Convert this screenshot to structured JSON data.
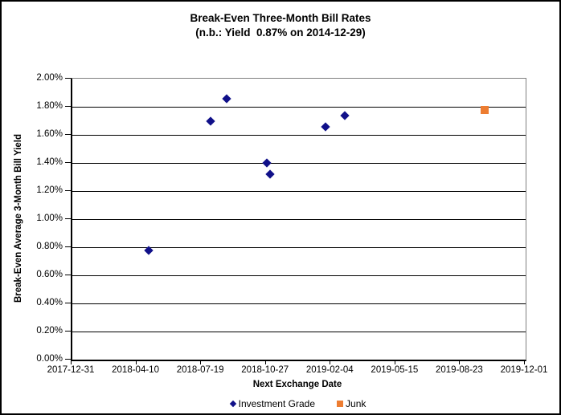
{
  "chart_data": {
    "type": "scatter",
    "title": "Break-Even Three-Month Bill Rates",
    "subtitle": "(n.b.: Yield  0.87% on 2014-12-29)",
    "xlabel": "Next Exchange Date",
    "ylabel": "Break-Even Average 3-Month Bill Yield",
    "grid": "horizontal",
    "legend_position": "bottom-center",
    "x_axis": {
      "range_days": [
        0,
        700
      ],
      "tick_days": [
        0,
        100,
        200,
        300,
        400,
        500,
        600,
        700
      ],
      "tick_labels": [
        "2017-12-31",
        "2018-04-10",
        "2018-07-19",
        "2018-10-27",
        "2019-02-04",
        "2019-05-15",
        "2019-08-23",
        "2019-12-01"
      ]
    },
    "y_axis": {
      "range": [
        0,
        2
      ],
      "tick_values": [
        0.0,
        0.2,
        0.4,
        0.6,
        0.8,
        1.0,
        1.2,
        1.4,
        1.6,
        1.8,
        2.0
      ],
      "tick_labels": [
        "0.00%",
        "0.20%",
        "0.40%",
        "0.60%",
        "0.80%",
        "1.00%",
        "1.20%",
        "1.40%",
        "1.60%",
        "1.80%",
        "2.00%"
      ]
    },
    "series": [
      {
        "name": "Investment Grade",
        "marker": "diamond",
        "color": "#101089",
        "points": [
          {
            "date": "2018-04-28",
            "days": 118,
            "yield_pct": 0.78
          },
          {
            "date": "2018-08-02",
            "days": 214,
            "yield_pct": 1.7
          },
          {
            "date": "2018-08-26",
            "days": 238,
            "yield_pct": 1.86
          },
          {
            "date": "2018-10-27",
            "days": 300,
            "yield_pct": 1.4
          },
          {
            "date": "2018-11-01",
            "days": 305,
            "yield_pct": 1.32
          },
          {
            "date": "2019-01-26",
            "days": 391,
            "yield_pct": 1.66
          },
          {
            "date": "2019-02-25",
            "days": 421,
            "yield_pct": 1.74
          }
        ]
      },
      {
        "name": "Junk",
        "marker": "square",
        "color": "#ED7D31",
        "points": [
          {
            "date": "2019-09-29",
            "days": 637,
            "yield_pct": 1.78
          }
        ]
      }
    ]
  }
}
